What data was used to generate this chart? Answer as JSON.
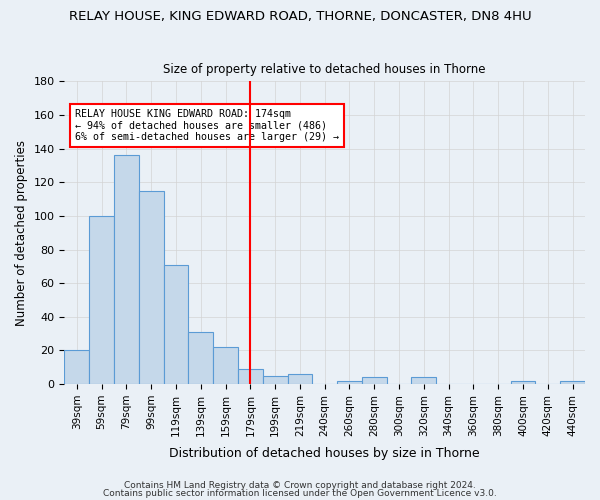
{
  "title": "RELAY HOUSE, KING EDWARD ROAD, THORNE, DONCASTER, DN8 4HU",
  "subtitle": "Size of property relative to detached houses in Thorne",
  "xlabel": "Distribution of detached houses by size in Thorne",
  "ylabel": "Number of detached properties",
  "bar_categories": [
    "39sqm",
    "59sqm",
    "79sqm",
    "99sqm",
    "119sqm",
    "139sqm",
    "159sqm",
    "179sqm",
    "199sqm",
    "219sqm",
    "240sqm",
    "260sqm",
    "280sqm",
    "300sqm",
    "320sqm",
    "340sqm",
    "360sqm",
    "380sqm",
    "400sqm",
    "420sqm",
    "440sqm"
  ],
  "bar_heights": [
    20,
    100,
    136,
    115,
    71,
    31,
    22,
    9,
    5,
    6,
    0,
    2,
    4,
    0,
    4,
    0,
    0,
    0,
    2,
    0,
    2
  ],
  "bar_color": "#c5d8ea",
  "bar_edge_color": "#5b9bd5",
  "vline_pos": 7.0,
  "vline_color": "red",
  "annotation_title": "RELAY HOUSE KING EDWARD ROAD: 174sqm",
  "annotation_line1": "← 94% of detached houses are smaller (486)",
  "annotation_line2": "6% of semi-detached houses are larger (29) →",
  "annotation_box_color": "#ffffff",
  "annotation_box_edge": "red",
  "ylim": [
    0,
    180
  ],
  "yticks": [
    0,
    20,
    40,
    60,
    80,
    100,
    120,
    140,
    160,
    180
  ],
  "footer1": "Contains HM Land Registry data © Crown copyright and database right 2024.",
  "footer2": "Contains public sector information licensed under the Open Government Licence v3.0.",
  "background_color": "#eaf0f6",
  "plot_background": "#eaf0f6"
}
